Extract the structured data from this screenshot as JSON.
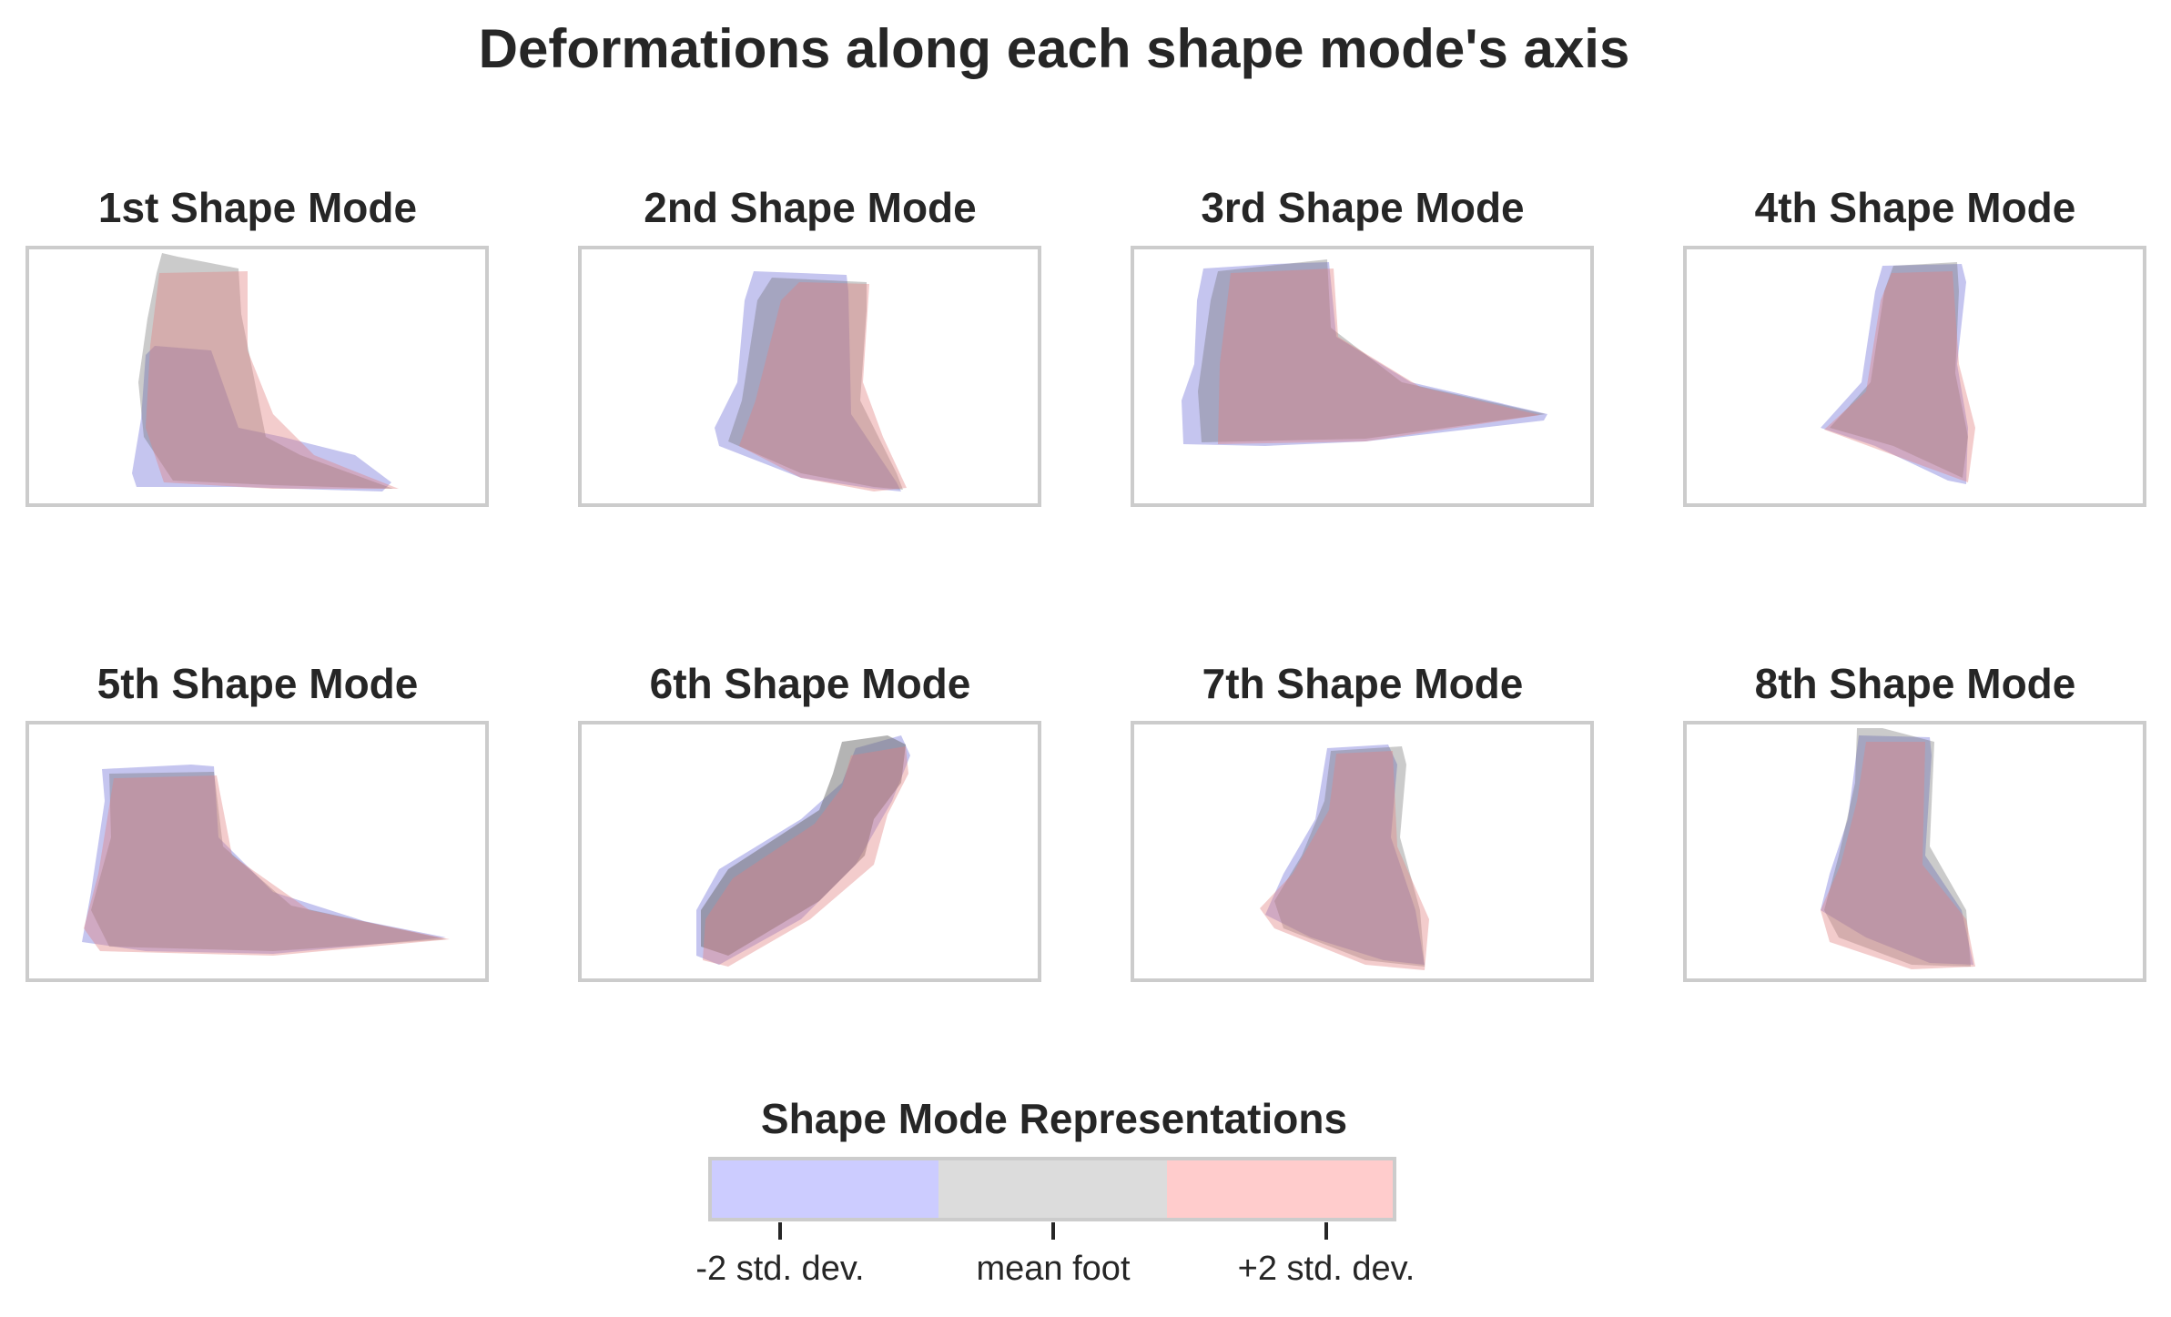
{
  "figure": {
    "title": "Deformations along each shape mode's axis"
  },
  "panels": [
    {
      "title": "1st Shape Mode"
    },
    {
      "title": "2nd Shape Mode"
    },
    {
      "title": "3rd Shape Mode"
    },
    {
      "title": "4th Shape Mode"
    },
    {
      "title": "5th Shape Mode"
    },
    {
      "title": "6th Shape Mode"
    },
    {
      "title": "7th Shape Mode"
    },
    {
      "title": "8th Shape Mode"
    }
  ],
  "legend": {
    "title": "Shape Mode Representations",
    "entries": [
      {
        "label": "-2 std. dev.",
        "color": "#ccccff"
      },
      {
        "label": "mean foot",
        "color": "#dcdcdc"
      },
      {
        "label": "+2 std. dev.",
        "color": "#ffcccc"
      }
    ]
  },
  "colors": {
    "minus": "#6f6fd8",
    "mean": "#6a6a6a",
    "plus": "#e08080",
    "frame": "#cccccc",
    "text": "#262626"
  }
}
